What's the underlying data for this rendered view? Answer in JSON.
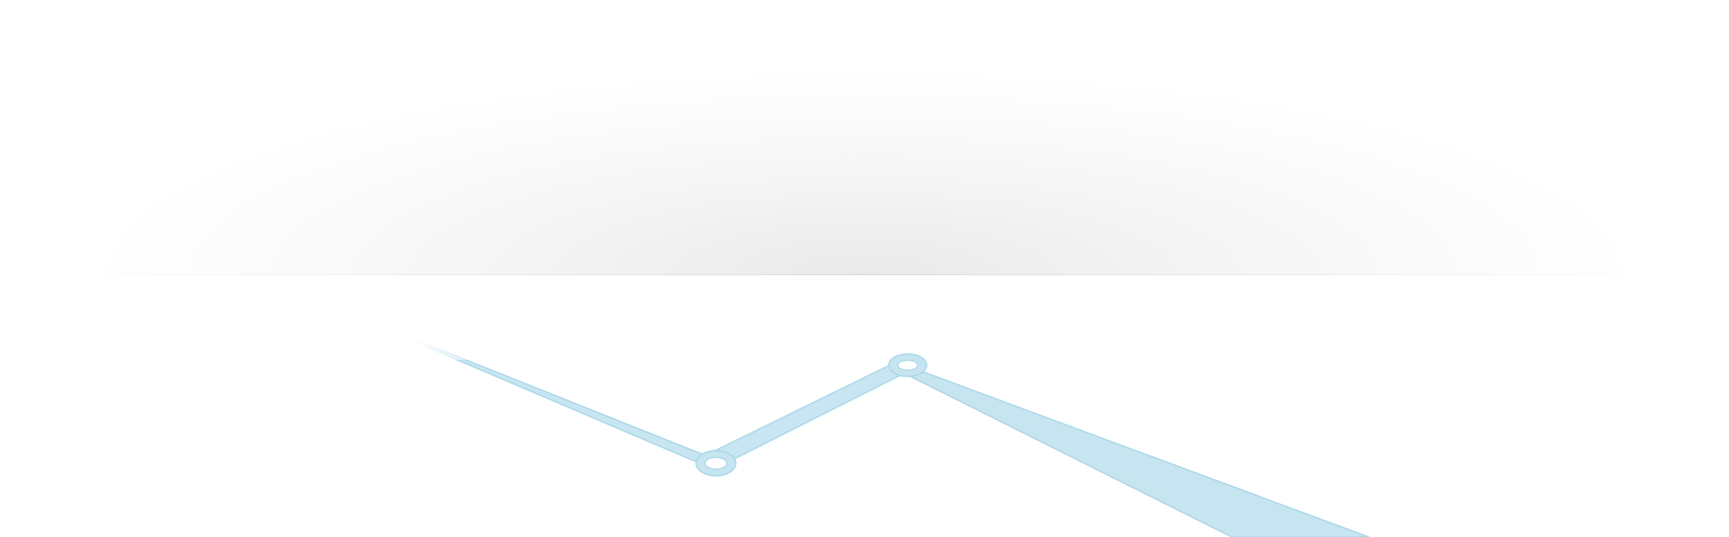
{
  "decoration": {
    "line_color": "#c8e6f1",
    "line_stroke_color": "#a8d6e8",
    "fill_color": "#c6e5f0",
    "marker_ring_color": "#b9dfee",
    "marker_center_color": "#ffffff",
    "shadow_color": "#000000",
    "background_color": "#ffffff"
  }
}
